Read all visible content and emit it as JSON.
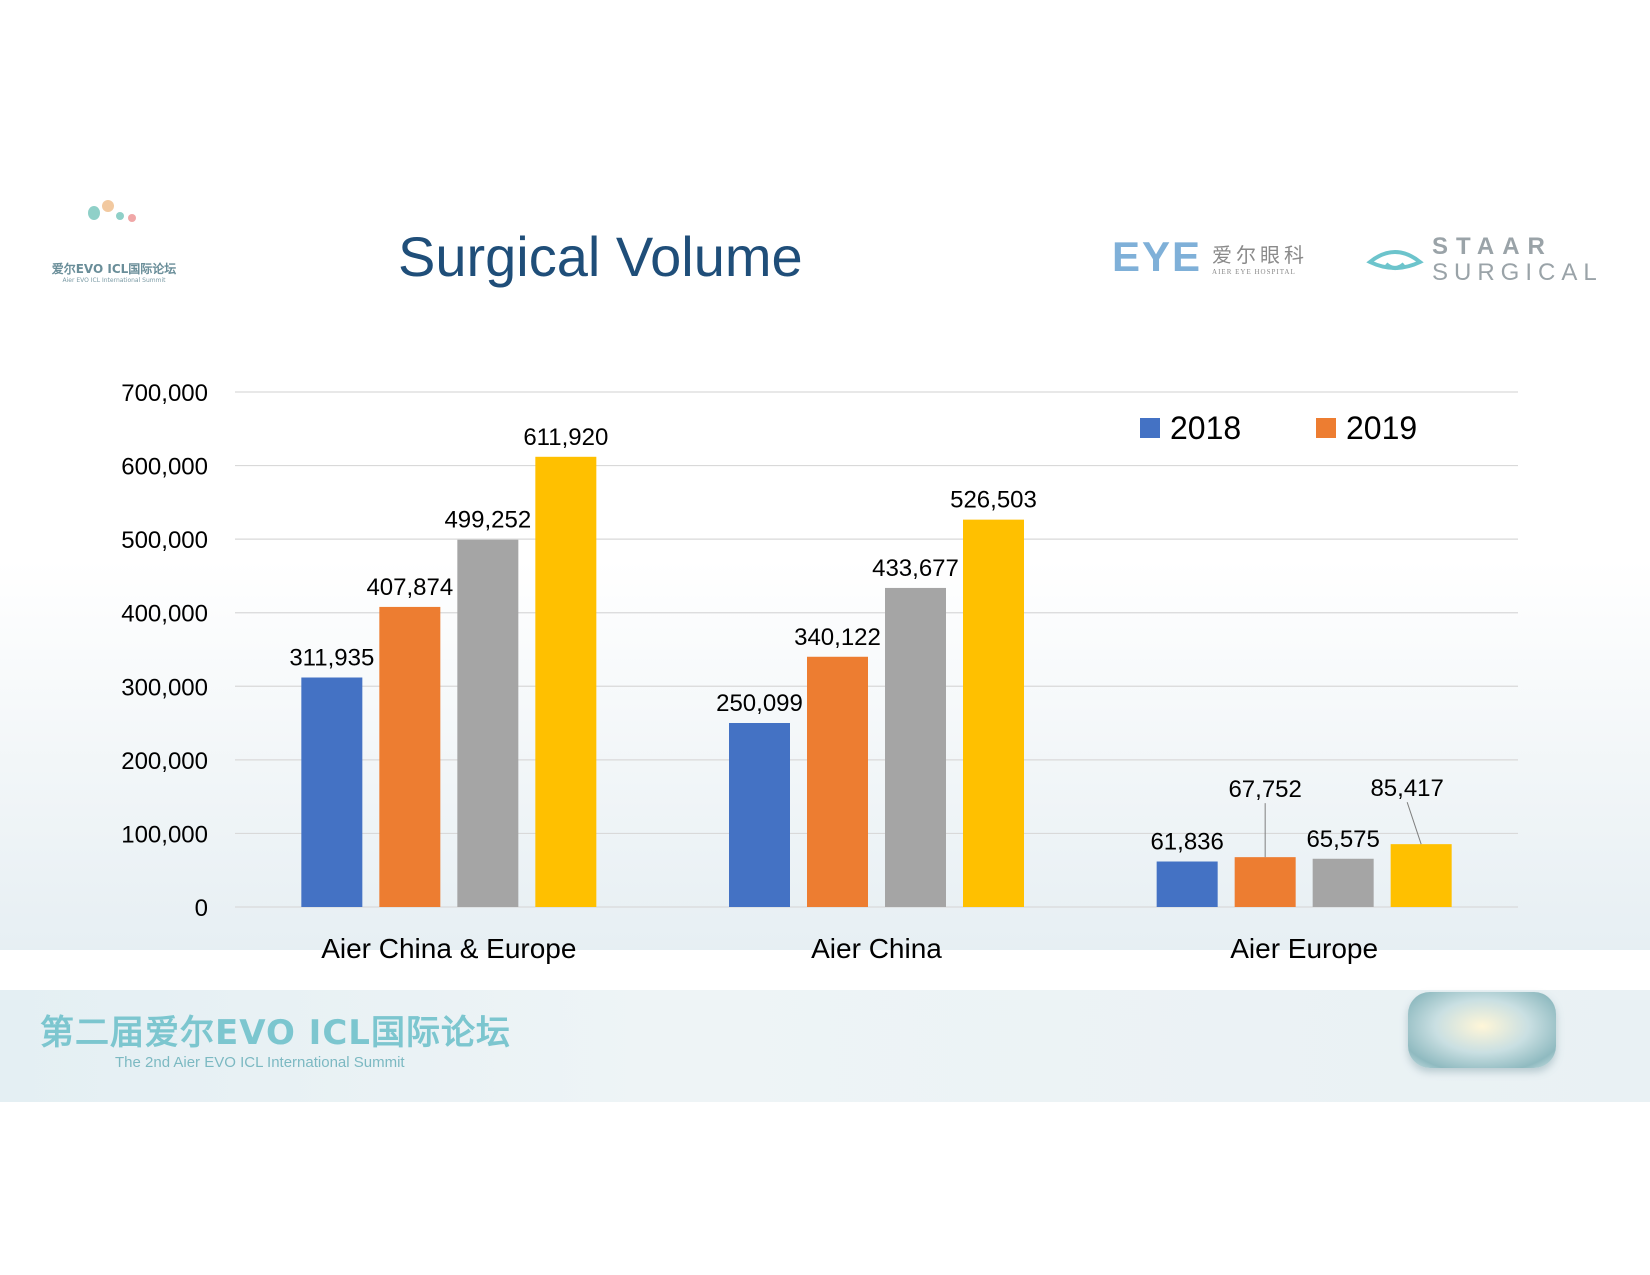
{
  "header": {
    "title": "Surgical Volume",
    "summit_logo_cn": "爱尔EVO ICL国际论坛",
    "summit_logo_en": "Aier EVO ICL International Summit",
    "partner_logo_mark": "EYE",
    "partner_logo_cn": "爱尔眼科",
    "partner_logo_en": "AIER EYE HOSPITAL",
    "staar_line1": "STAAR",
    "staar_line2": "SURGICAL"
  },
  "footer": {
    "title_cn": "第二届爱尔EVO ICL国际论坛",
    "subtitle_en": "The 2nd Aier EVO ICL International Summit"
  },
  "colors": {
    "title": "#1f4e79",
    "series": [
      "#4472c4",
      "#ed7d31",
      "#a5a5a5",
      "#ffc000"
    ],
    "grid": "#d9d9d9"
  },
  "chart_data": {
    "type": "bar",
    "title": "Surgical Volume",
    "categories": [
      "Aier China & Europe",
      "Aier China",
      "Aier Europe"
    ],
    "series": [
      {
        "name": "2018",
        "values": [
          311935,
          250099,
          61836
        ]
      },
      {
        "name": "2019",
        "values": [
          407874,
          340122,
          67752
        ]
      },
      {
        "name": "",
        "values": [
          499252,
          433677,
          65575
        ]
      },
      {
        "name": "",
        "values": [
          611920,
          526503,
          85417
        ]
      }
    ],
    "data_labels": [
      [
        "311,935",
        "250,099",
        "61,836"
      ],
      [
        "407,874",
        "340,122",
        "67,752"
      ],
      [
        "499,252",
        "433,677",
        "65,575"
      ],
      [
        "611,920",
        "526,503",
        "85,417"
      ]
    ],
    "legend": [
      "2018",
      "2019"
    ],
    "legend_position": "top-right",
    "yticks": [
      "0",
      "100,000",
      "200,000",
      "300,000",
      "400,000",
      "500,000",
      "600,000",
      "700,000"
    ],
    "ylim": [
      0,
      700000
    ],
    "grid": true,
    "xlabel": "",
    "ylabel": ""
  }
}
